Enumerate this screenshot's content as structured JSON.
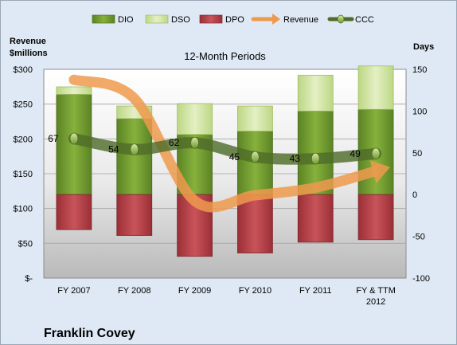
{
  "chart_data": {
    "type": "bar",
    "subtitle": "12-Month Periods",
    "company": "Franklin Covey",
    "y_left_label": [
      "Revenue",
      "$millions"
    ],
    "y_right_label": "Days",
    "categories": [
      [
        "FY 2007"
      ],
      [
        "FY 2008"
      ],
      [
        "FY 2009"
      ],
      [
        "FY 2010"
      ],
      [
        "FY 2011"
      ],
      [
        "FY & TTM",
        "2012"
      ]
    ],
    "left_axis": {
      "min": 0,
      "max": 300,
      "step": 50,
      "tick_labels": [
        "$-",
        "$50",
        "$100",
        "$150",
        "$200",
        "$250",
        "$300"
      ]
    },
    "right_axis": {
      "min": -100,
      "max": 150,
      "step": 50,
      "tick_labels": [
        "-100",
        "-50",
        "0",
        "50",
        "100",
        "150"
      ]
    },
    "grid": true,
    "legend_position": "top",
    "legend": [
      {
        "name": "DIO",
        "kind": "bar",
        "color": "#6f9a2c"
      },
      {
        "name": "DSO",
        "kind": "bar",
        "color": "#cfe3a0"
      },
      {
        "name": "DPO",
        "kind": "bar",
        "color": "#b8444a"
      },
      {
        "name": "Revenue",
        "kind": "arrow",
        "color": "#ee9a4d"
      },
      {
        "name": "CCC",
        "kind": "line",
        "color": "#4f6c2a"
      }
    ],
    "series": [
      {
        "name": "DIO",
        "axis": "right",
        "values": [
          120,
          91,
          72,
          76,
          100,
          102
        ]
      },
      {
        "name": "DSO",
        "axis": "right",
        "values": [
          9,
          15,
          37,
          30,
          43,
          52
        ]
      },
      {
        "name": "DPO",
        "axis": "right",
        "values": [
          -42,
          -49,
          -74,
          -70,
          -57,
          -54
        ]
      },
      {
        "name": "Revenue",
        "axis": "left",
        "values": [
          285,
          258,
          111,
          119,
          130,
          153
        ]
      },
      {
        "name": "CCC",
        "axis": "right",
        "values": [
          67,
          54,
          62,
          45,
          43,
          49
        ]
      }
    ],
    "data_labels": [
      "67",
      "54",
      "62",
      "45",
      "43",
      "49"
    ]
  }
}
